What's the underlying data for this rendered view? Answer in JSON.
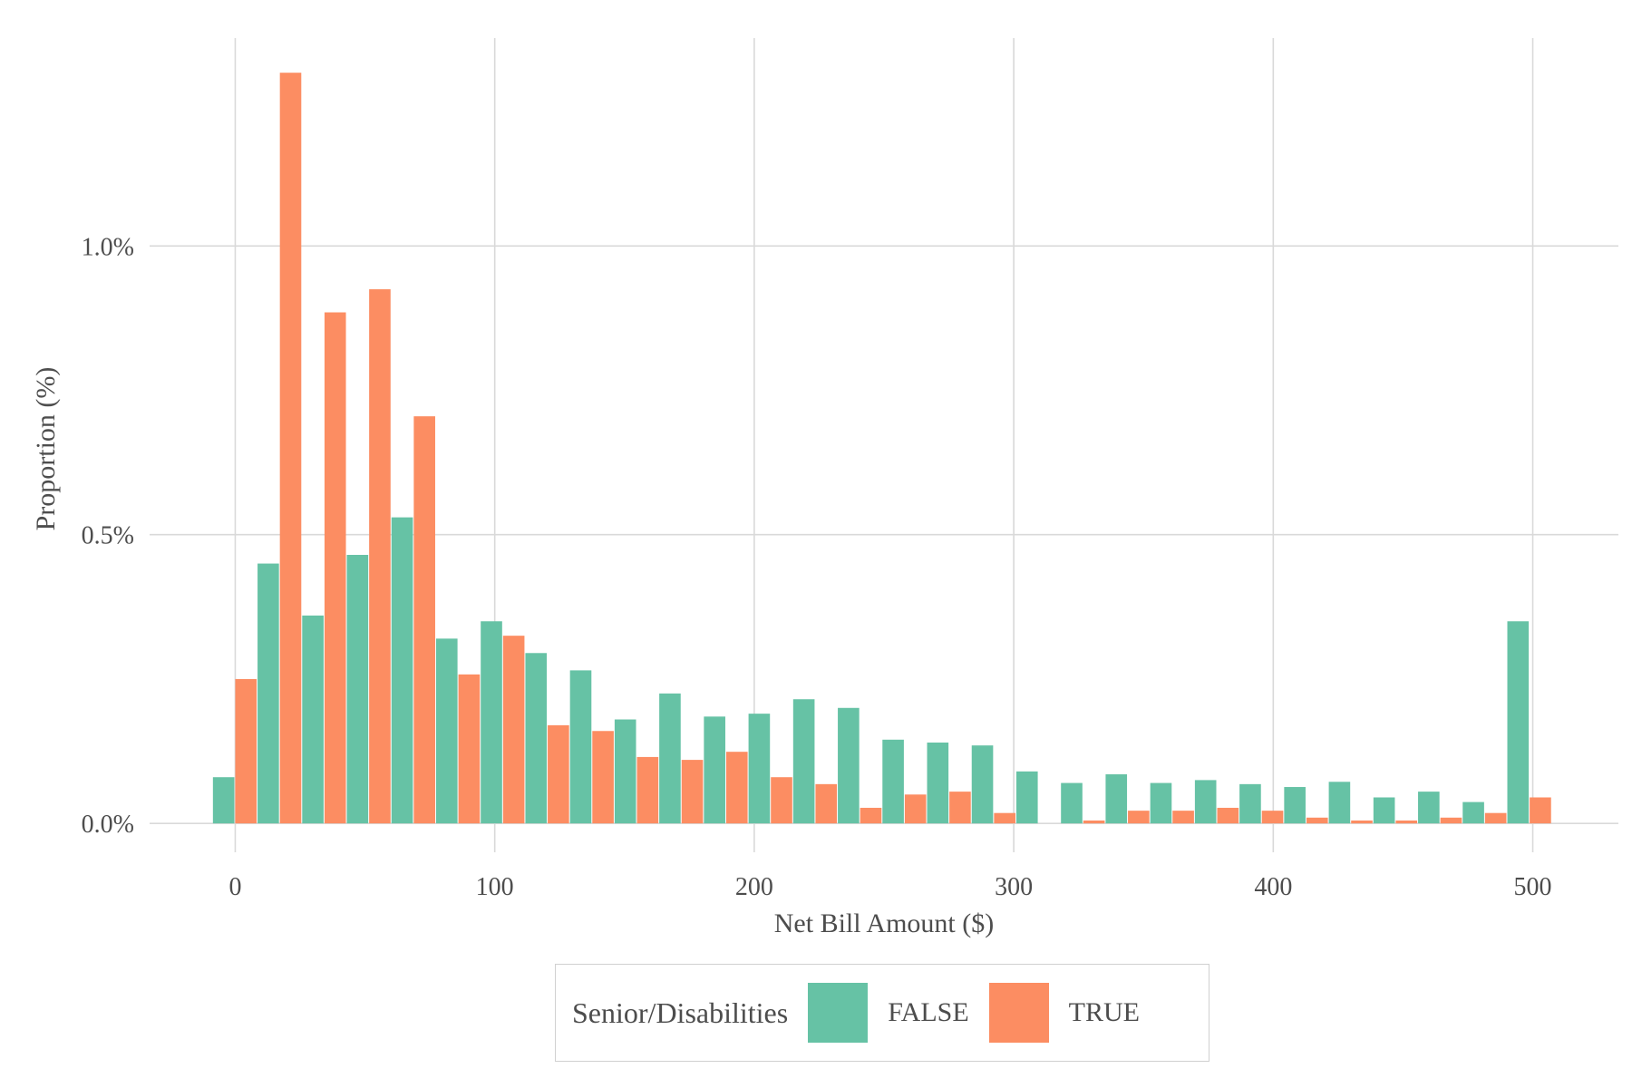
{
  "colors": {
    "false_series": "#66c2a5",
    "true_series": "#fc8d62",
    "grid": "#d9d9d9",
    "text": "#4d4d4d"
  },
  "chart_data": {
    "type": "bar",
    "xlabel": "Net Bill Amount ($)",
    "ylabel": "Proportion (%)",
    "xlim": [
      -33,
      533
    ],
    "ylim": [
      -0.05,
      1.36
    ],
    "x_ticks": [
      0,
      100,
      200,
      300,
      400,
      500
    ],
    "x_tick_labels": [
      "0",
      "100",
      "200",
      "300",
      "400",
      "500"
    ],
    "y_ticks": [
      0.0,
      0.5,
      1.0
    ],
    "y_tick_labels": [
      "0.0%",
      "0.5%",
      "1.0%"
    ],
    "bin_width": 17.2,
    "bin_centers": [
      0,
      17.2,
      34.4,
      51.6,
      68.8,
      86,
      103.2,
      120.4,
      137.6,
      154.8,
      172,
      189.2,
      206.4,
      223.6,
      240.8,
      258,
      275.2,
      292.4,
      309.6,
      326.8,
      344,
      361.2,
      378.4,
      395.6,
      412.8,
      430,
      447.2,
      464.4,
      481.6,
      498.8
    ],
    "legend_position": "bottom",
    "legend_title": "Senior/Disabilities",
    "series": [
      {
        "name": "FALSE",
        "values": [
          0.08,
          0.45,
          0.36,
          0.465,
          0.53,
          0.32,
          0.35,
          0.295,
          0.265,
          0.18,
          0.225,
          0.185,
          0.19,
          0.215,
          0.2,
          0.145,
          0.14,
          0.135,
          0.09,
          0.07,
          0.085,
          0.07,
          0.075,
          0.068,
          0.063,
          0.072,
          0.045,
          0.055,
          0.037,
          0.35
        ]
      },
      {
        "name": "TRUE",
        "values": [
          0.25,
          1.3,
          0.885,
          0.925,
          0.705,
          0.258,
          0.325,
          0.17,
          0.16,
          0.115,
          0.11,
          0.124,
          0.08,
          0.068,
          0.027,
          0.05,
          0.055,
          0.018,
          0.0,
          0.005,
          0.022,
          0.022,
          0.027,
          0.022,
          0.01,
          0.005,
          0.005,
          0.01,
          0.018,
          0.045
        ]
      }
    ]
  }
}
